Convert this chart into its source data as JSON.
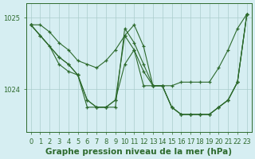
{
  "title": "Graphe pression niveau de la mer (hPa)",
  "background_color": "#d6eef2",
  "line_color": "#2d6a2d",
  "grid_color": "#aacccc",
  "series": [
    {
      "x": [
        0,
        1,
        2,
        3,
        4,
        5,
        6,
        7,
        8,
        9,
        10,
        11,
        12,
        13,
        14,
        15,
        16,
        17,
        18,
        19,
        20,
        21,
        22,
        23
      ],
      "y": [
        1024.9,
        1024.9,
        1024.8,
        1024.65,
        1024.55,
        1024.4,
        1024.35,
        1024.3,
        1024.4,
        1024.55,
        1024.75,
        1024.9,
        1024.6,
        1024.05,
        1024.05,
        1024.05,
        1024.1,
        1024.1,
        1024.1,
        1024.1,
        1024.3,
        1024.55,
        1024.85,
        1025.05
      ]
    },
    {
      "x": [
        0,
        1,
        2,
        3,
        4,
        5,
        6,
        7,
        8,
        9,
        10,
        11,
        12,
        13,
        14,
        15,
        16,
        17,
        18,
        19,
        20,
        21,
        22,
        23
      ],
      "y": [
        1024.9,
        1024.75,
        1024.6,
        1024.35,
        1024.25,
        1024.2,
        1023.85,
        1023.75,
        1023.75,
        1023.85,
        1024.35,
        1024.55,
        1024.25,
        1024.05,
        1024.05,
        1023.75,
        1023.65,
        1023.65,
        1023.65,
        1023.65,
        1023.75,
        1023.85,
        1024.1,
        1025.05
      ]
    },
    {
      "x": [
        0,
        3,
        4,
        5,
        6,
        7,
        8,
        9,
        10,
        11,
        12,
        13,
        14,
        15,
        16,
        17,
        18,
        19,
        20,
        21,
        22,
        23
      ],
      "y": [
        1024.9,
        1024.45,
        1024.35,
        1024.2,
        1023.75,
        1023.75,
        1023.75,
        1023.75,
        1024.85,
        1024.65,
        1024.35,
        1024.05,
        1024.05,
        1023.75,
        1023.65,
        1023.65,
        1023.65,
        1023.65,
        1023.75,
        1023.85,
        1024.1,
        1025.05
      ]
    },
    {
      "x": [
        0,
        1,
        3,
        4,
        5,
        6,
        7,
        8,
        9,
        10,
        11,
        12,
        13,
        14,
        15,
        16,
        17,
        18,
        19,
        20,
        21,
        22,
        23
      ],
      "y": [
        1024.9,
        1024.75,
        1024.45,
        1024.35,
        1024.2,
        1023.85,
        1023.75,
        1023.75,
        1023.85,
        1024.75,
        1024.55,
        1024.05,
        1024.05,
        1024.05,
        1023.75,
        1023.65,
        1023.65,
        1023.65,
        1023.65,
        1023.75,
        1023.85,
        1024.1,
        1025.05
      ]
    }
  ],
  "ylim": [
    1023.4,
    1025.2
  ],
  "yticks": [
    1024.0,
    1025.0
  ],
  "ytick_labels": [
    "1024",
    "1025"
  ],
  "xticks": [
    0,
    1,
    2,
    3,
    4,
    5,
    6,
    7,
    8,
    9,
    10,
    11,
    12,
    13,
    14,
    15,
    16,
    17,
    18,
    19,
    20,
    21,
    22,
    23
  ],
  "tick_fontsize": 6,
  "label_fontsize": 7.5
}
